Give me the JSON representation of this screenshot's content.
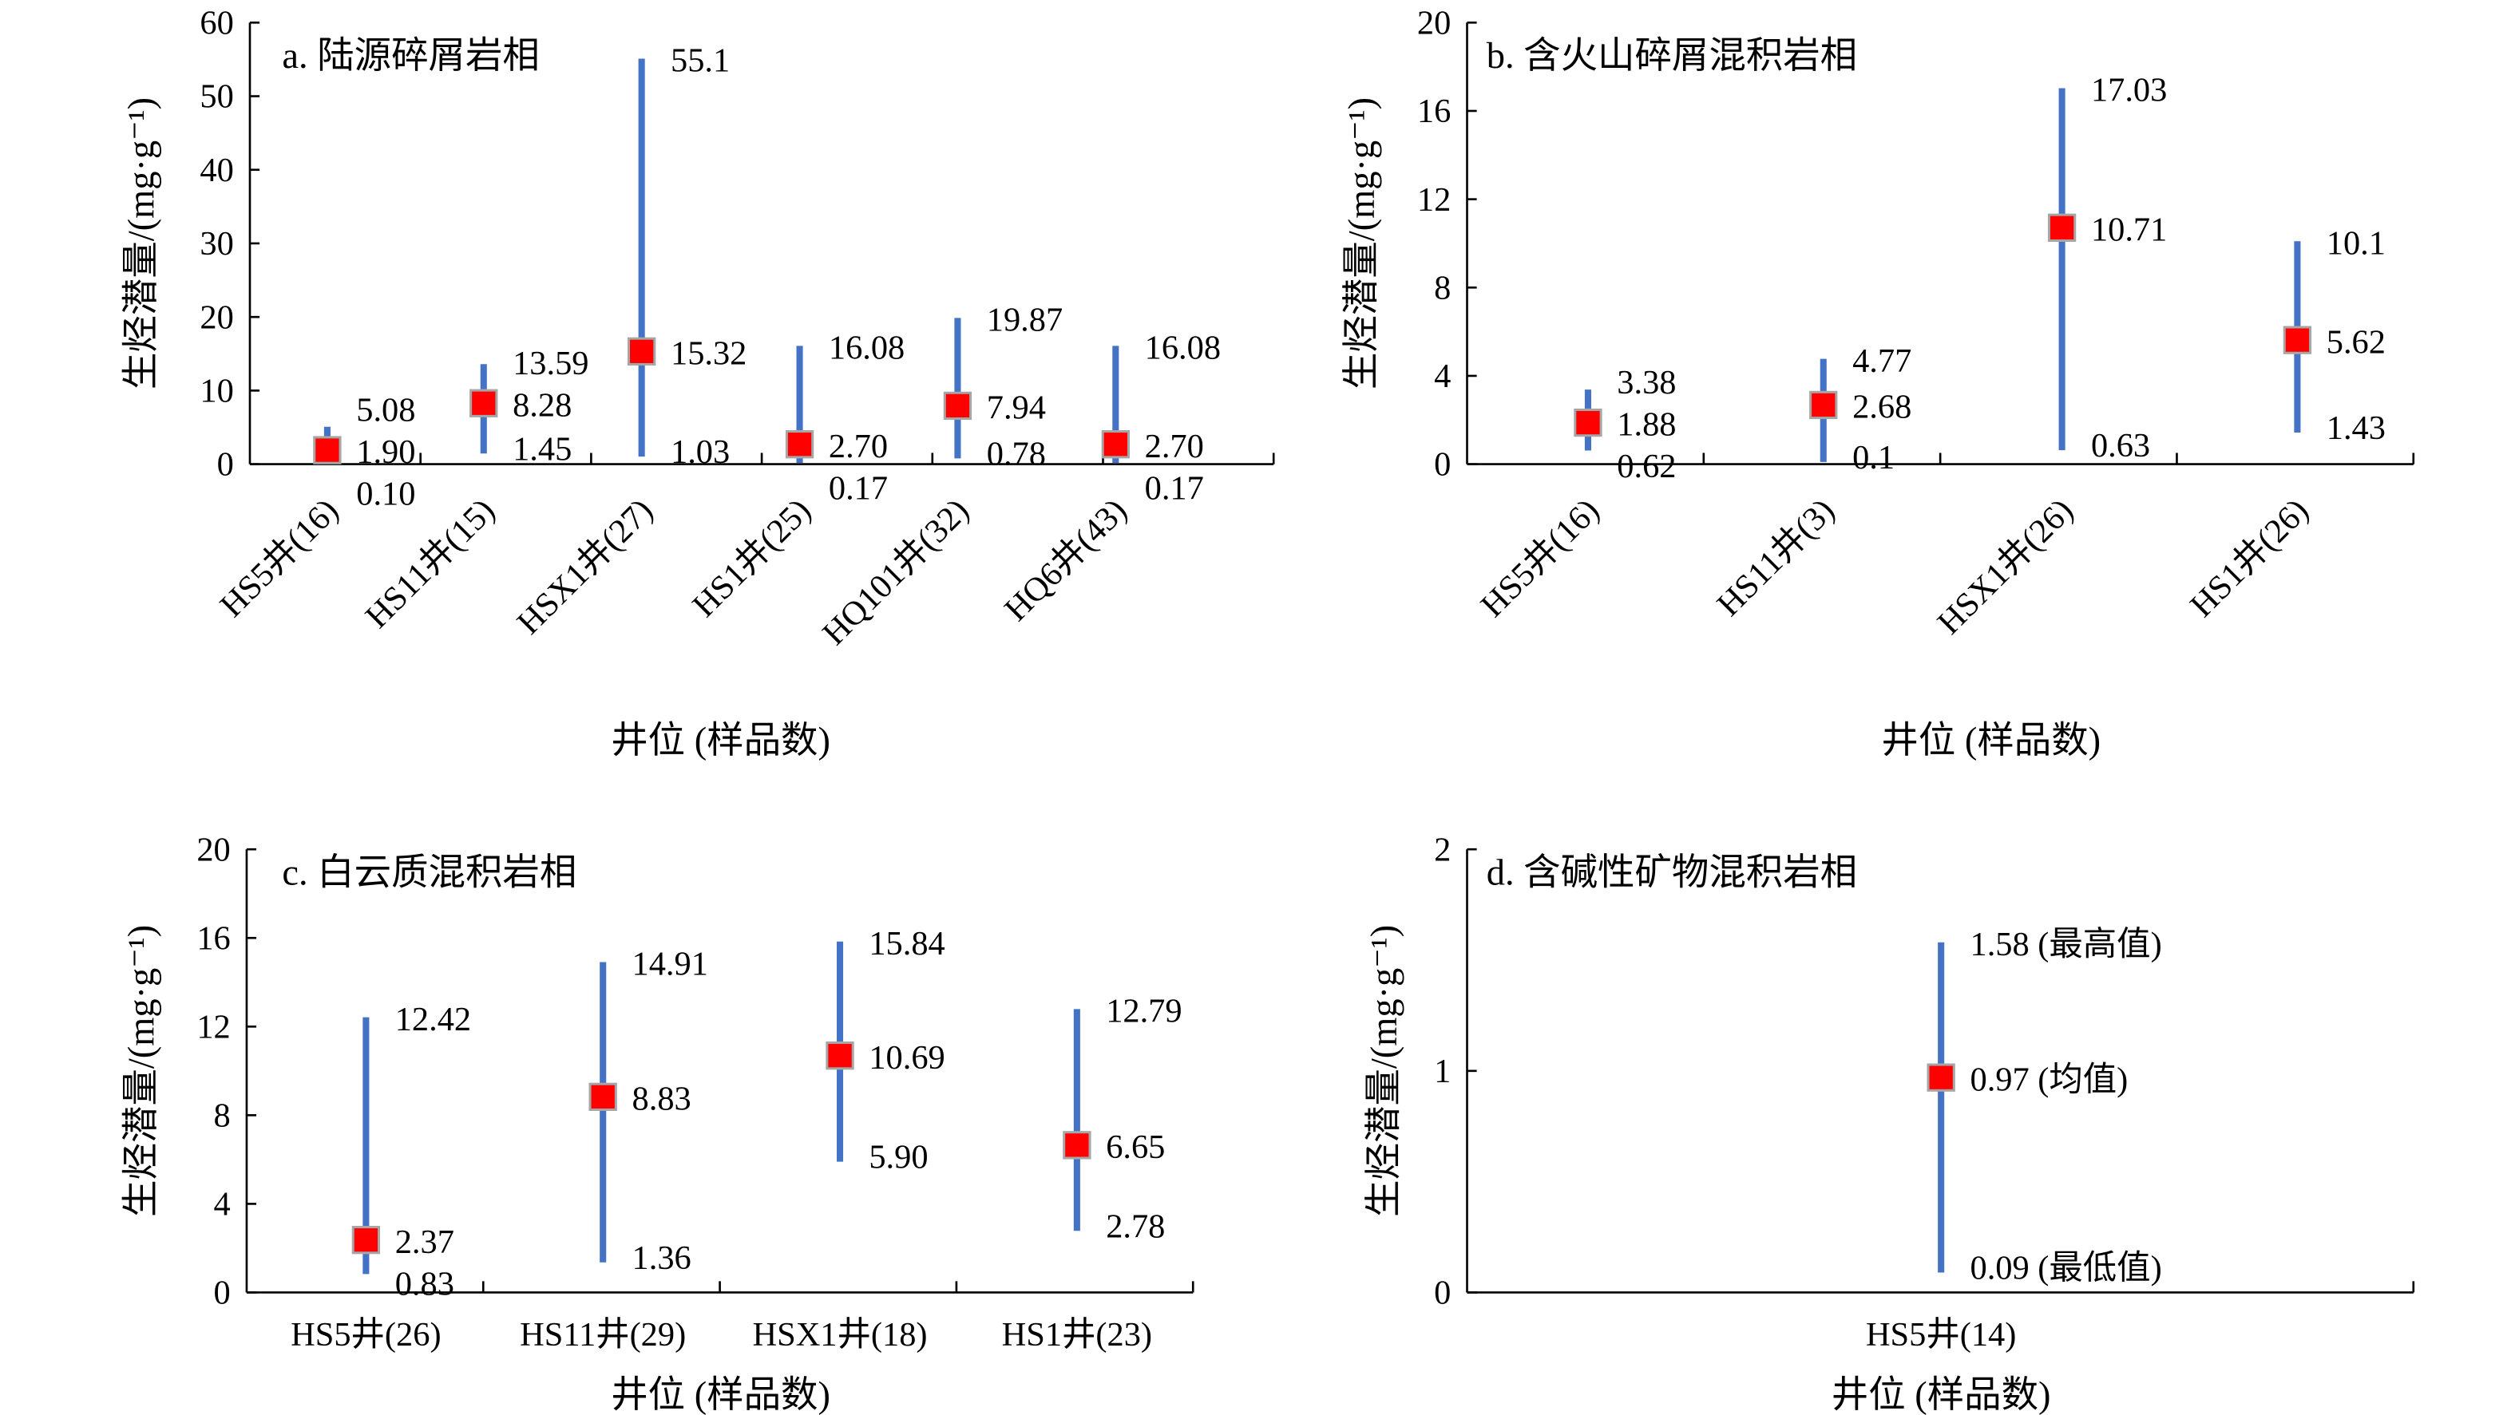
{
  "colors": {
    "range_bar": "#4472C4",
    "mean_marker": "#FF0000",
    "marker_border": "#A6A6A6"
  },
  "chart_data": [
    {
      "type": "range-bar",
      "title": "a. 陆源碎屑岩相",
      "xlabel": "井位 (样品数)",
      "ylabel": "生烃潜量/(mg·g⁻¹)",
      "ylim": [
        0,
        60
      ],
      "yticks": [
        0,
        10,
        20,
        30,
        40,
        50,
        60
      ],
      "categories": [
        "HS5井(16)",
        "HS11井(15)",
        "HSX1井(27)",
        "HS1井(25)",
        "HQ101井(32)",
        "HQ6井(43)"
      ],
      "max": [
        "5.08",
        "13.59",
        "55.1",
        "16.08",
        "19.87",
        "16.08"
      ],
      "mean": [
        "1.90",
        "8.28",
        "15.32",
        "2.70",
        "7.94",
        "2.70"
      ],
      "min": [
        "0.10",
        "1.45",
        "1.03",
        "0.17",
        "0.78",
        "0.17"
      ],
      "x_tick_labels_rotated": true
    },
    {
      "type": "range-bar",
      "title": "b. 含火山碎屑混积岩相",
      "xlabel": "井位 (样品数)",
      "ylabel": "生烃潜量/(mg·g⁻¹)",
      "ylim": [
        0,
        20
      ],
      "yticks": [
        0,
        4,
        8,
        12,
        16,
        20
      ],
      "categories": [
        "HS5井(16)",
        "HS11井(3)",
        "HSX1井(26)",
        "HS1井(26)"
      ],
      "max": [
        "3.38",
        "4.77",
        "17.03",
        "10.1"
      ],
      "mean": [
        "1.88",
        "2.68",
        "10.71",
        "5.62"
      ],
      "min": [
        "0.62",
        "0.1",
        "0.63",
        "1.43"
      ],
      "x_tick_labels_rotated": true
    },
    {
      "type": "range-bar",
      "title": "c. 白云质混积岩相",
      "xlabel": "井位 (样品数)",
      "ylabel": "生烃潜量/(mg·g⁻¹)",
      "ylim": [
        0,
        20
      ],
      "yticks": [
        0,
        4,
        8,
        12,
        16,
        20
      ],
      "categories": [
        "HS5井(26)",
        "HS11井(29)",
        "HSX1井(18)",
        "HS1井(23)"
      ],
      "max": [
        "12.42",
        "14.91",
        "15.84",
        "12.79"
      ],
      "mean": [
        "2.37",
        "8.83",
        "10.69",
        "6.65"
      ],
      "min": [
        "0.83",
        "1.36",
        "5.90",
        "2.78"
      ],
      "x_tick_labels_rotated": false
    },
    {
      "type": "range-bar",
      "title": "d. 含碱性矿物混积岩相",
      "xlabel": "井位 (样品数)",
      "ylabel": "生烃潜量/(mg·g⁻¹)",
      "ylim": [
        0,
        2
      ],
      "yticks": [
        0,
        1,
        2
      ],
      "categories": [
        "HS5井(14)"
      ],
      "max": [
        "1.58"
      ],
      "mean": [
        "0.97"
      ],
      "min": [
        "0.09"
      ],
      "annotations": {
        "max": "(最高值)",
        "mean": "(均值)",
        "min": "(最低值)"
      },
      "x_tick_labels_rotated": false
    }
  ]
}
